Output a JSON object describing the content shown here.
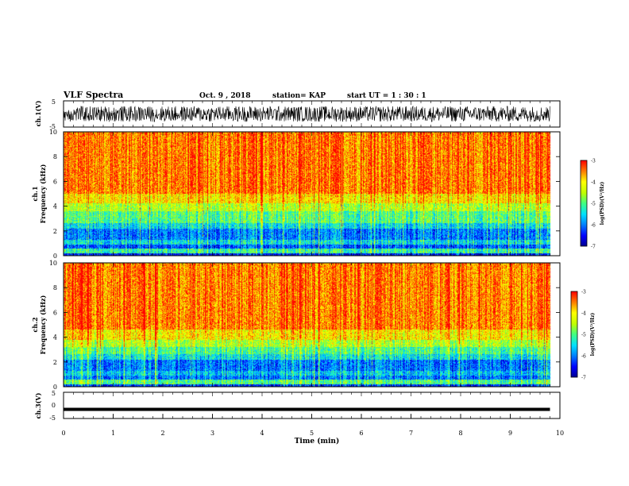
{
  "header": {
    "title": "VLF Spectra",
    "date": "Oct. 9 , 2018",
    "station": "station= KAP",
    "start": "start UT =  1 : 30 : 1"
  },
  "chart_data": [
    {
      "type": "line",
      "ylabel": "ch.1(V)",
      "ylim": [
        -5,
        5
      ],
      "y_ticks": [
        "5",
        "-5"
      ],
      "x_range_min": [
        0,
        9.8
      ],
      "description_values": {
        "typical_min": -3,
        "typical_max": 3
      }
    },
    {
      "type": "heatmap",
      "ylabel": "ch.1\nFrequency (kHz)",
      "ylabel_lines": [
        "ch.1",
        "Frequency (kHz)"
      ],
      "xlim": [
        0,
        10
      ],
      "ylim": [
        0,
        10
      ],
      "y_ticks": [
        "0",
        "2",
        "4",
        "6",
        "8",
        "10"
      ],
      "x_data_range": [
        0,
        9.8
      ],
      "colorbar": {
        "label": "log(PSD)(V²/Hz)",
        "ticks": [
          "-3",
          "-4",
          "-5",
          "-6",
          "-7"
        ],
        "range": [
          -7,
          -3
        ]
      },
      "bands_log_psd": [
        {
          "freq_khz": [
            0,
            0.2
          ],
          "level": -6.5
        },
        {
          "freq_khz": [
            0.2,
            0.6
          ],
          "level": -5.2
        },
        {
          "freq_khz": [
            0.6,
            0.9
          ],
          "level": -6.2
        },
        {
          "freq_khz": [
            0.9,
            1.3
          ],
          "level": -5.5
        },
        {
          "freq_khz": [
            1.3,
            2.2
          ],
          "level": -6.0
        },
        {
          "freq_khz": [
            2.2,
            2.6
          ],
          "level": -5.5
        },
        {
          "freq_khz": [
            2.6,
            3.6
          ],
          "level": -5.0
        },
        {
          "freq_khz": [
            3.6,
            4.2
          ],
          "level": -4.5
        },
        {
          "freq_khz": [
            4.2,
            5.0
          ],
          "level": -4.0
        },
        {
          "freq_khz": [
            5.0,
            10.0
          ],
          "level": -3.5
        }
      ]
    },
    {
      "type": "heatmap",
      "ylabel": "ch.2\nFrequency (kHz)",
      "ylabel_lines": [
        "ch.2",
        "Frequency (kHz)"
      ],
      "xlim": [
        0,
        10
      ],
      "ylim": [
        0,
        10
      ],
      "y_ticks": [
        "0",
        "2",
        "4",
        "6",
        "8",
        "10"
      ],
      "x_data_range": [
        0,
        9.8
      ],
      "colorbar": {
        "label": "log(PSD)(V²/Hz)",
        "ticks": [
          "-3",
          "-4",
          "-5",
          "-6",
          "-7"
        ],
        "range": [
          -7,
          -3
        ]
      },
      "bands_log_psd": [
        {
          "freq_khz": [
            0,
            0.2
          ],
          "level": -6.3
        },
        {
          "freq_khz": [
            0.2,
            0.6
          ],
          "level": -5.0
        },
        {
          "freq_khz": [
            0.6,
            0.9
          ],
          "level": -6.0
        },
        {
          "freq_khz": [
            0.9,
            1.3
          ],
          "level": -5.6
        },
        {
          "freq_khz": [
            1.3,
            2.2
          ],
          "level": -6.0
        },
        {
          "freq_khz": [
            2.2,
            2.6
          ],
          "level": -5.4
        },
        {
          "freq_khz": [
            2.6,
            3.2
          ],
          "level": -5.0
        },
        {
          "freq_khz": [
            3.2,
            3.8
          ],
          "level": -4.5
        },
        {
          "freq_khz": [
            3.8,
            4.6
          ],
          "level": -4.0
        },
        {
          "freq_khz": [
            4.6,
            10.0
          ],
          "level": -3.5
        }
      ]
    },
    {
      "type": "line",
      "ylabel": "ch.3(V)",
      "xlabel": "Time (min)",
      "xlim": [
        0,
        10
      ],
      "ylim": [
        -5,
        5
      ],
      "y_ticks": [
        "5",
        "0",
        "-5"
      ],
      "x_ticks": [
        "0",
        "1",
        "2",
        "3",
        "4",
        "5",
        "6",
        "7",
        "8",
        "9",
        "10"
      ],
      "x_data_range": [
        0,
        9.8
      ],
      "value_approx": -1.5
    }
  ],
  "colors": {
    "colormap": [
      "#000090",
      "#0000ff",
      "#0080ff",
      "#00e0ff",
      "#40ff80",
      "#c0ff00",
      "#ffff00",
      "#ff8000",
      "#ff0000",
      "#ffffff"
    ]
  }
}
